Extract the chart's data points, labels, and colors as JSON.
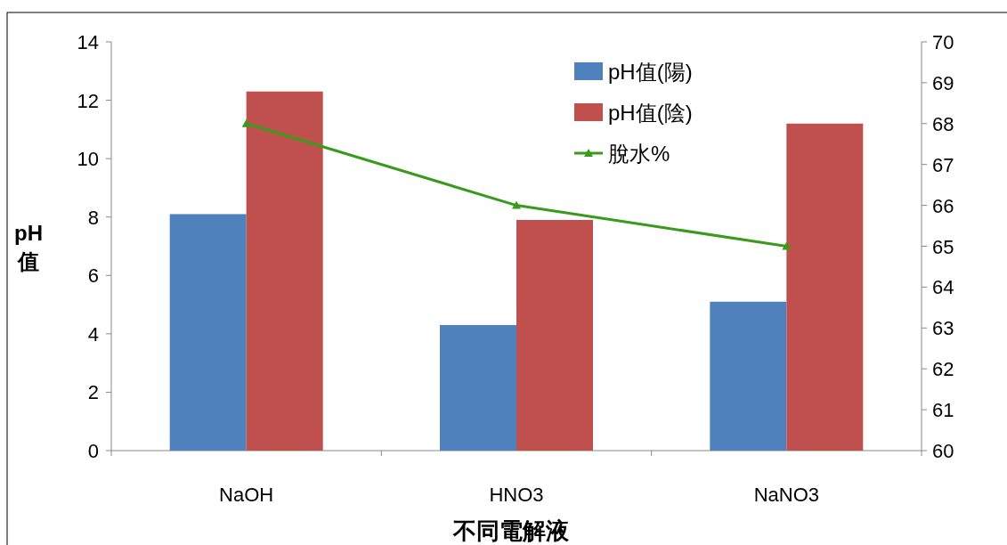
{
  "chart_data": {
    "type": "bar",
    "categories": [
      "NaOH",
      "HNO3",
      "NaNO3"
    ],
    "series": [
      {
        "name": "pH值(陽)",
        "color": "#4f81bd",
        "values": [
          8.1,
          4.3,
          5.1
        ]
      },
      {
        "name": "pH值(陰)",
        "color": "#c0504d",
        "values": [
          12.3,
          7.9,
          11.2
        ]
      },
      {
        "name": "脫水%",
        "type": "line",
        "axis": "y2",
        "color": "#3a9a1e",
        "marker": "triangle",
        "values": [
          68,
          66,
          65
        ]
      }
    ],
    "xlabel": "不同電解液",
    "ylabel": "pH值",
    "ylim": [
      0,
      14
    ],
    "yticks": [
      0,
      2,
      4,
      6,
      8,
      10,
      12,
      14
    ],
    "y2lim": [
      60,
      70
    ],
    "y2ticks": [
      60,
      61,
      62,
      63,
      64,
      65,
      66,
      67,
      68,
      69,
      70
    ],
    "legend": "top right",
    "grid": false
  }
}
